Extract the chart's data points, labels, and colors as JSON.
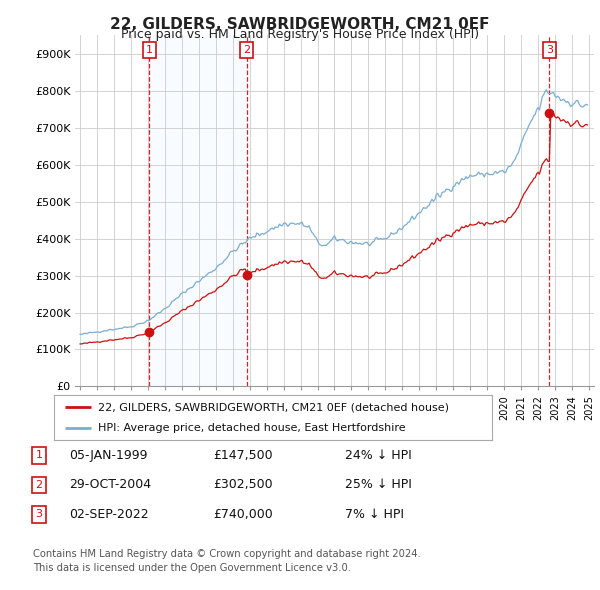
{
  "title": "22, GILDERS, SAWBRIDGEWORTH, CM21 0EF",
  "subtitle": "Price paid vs. HM Land Registry's House Price Index (HPI)",
  "ylim": [
    0,
    950000
  ],
  "yticks": [
    0,
    100000,
    200000,
    300000,
    400000,
    500000,
    600000,
    700000,
    800000,
    900000
  ],
  "ytick_labels": [
    "£0",
    "£100K",
    "£200K",
    "£300K",
    "£400K",
    "£500K",
    "£600K",
    "£700K",
    "£800K",
    "£900K"
  ],
  "hpi_color": "#7aadd4",
  "price_color": "#cc1111",
  "vline_color": "#cc1111",
  "shade_color": "#ddeeff",
  "purchases_t": [
    4.08,
    9.83,
    27.67
  ],
  "purchases_p": [
    147500,
    302500,
    740000
  ],
  "purchases_label": [
    "1",
    "2",
    "3"
  ],
  "legend_entries": [
    {
      "label": "22, GILDERS, SAWBRIDGEWORTH, CM21 0EF (detached house)",
      "color": "#cc1111"
    },
    {
      "label": "HPI: Average price, detached house, East Hertfordshire",
      "color": "#7aadd4"
    }
  ],
  "table_rows": [
    {
      "num": "1",
      "date": "05-JAN-1999",
      "price": "£147,500",
      "hpi": "24% ↓ HPI"
    },
    {
      "num": "2",
      "date": "29-OCT-2004",
      "price": "£302,500",
      "hpi": "25% ↓ HPI"
    },
    {
      "num": "3",
      "date": "02-SEP-2022",
      "price": "£740,000",
      "hpi": "7% ↓ HPI"
    }
  ],
  "footer": "Contains HM Land Registry data © Crown copyright and database right 2024.\nThis data is licensed under the Open Government Licence v3.0.",
  "background_color": "#ffffff",
  "grid_color": "#cccccc"
}
